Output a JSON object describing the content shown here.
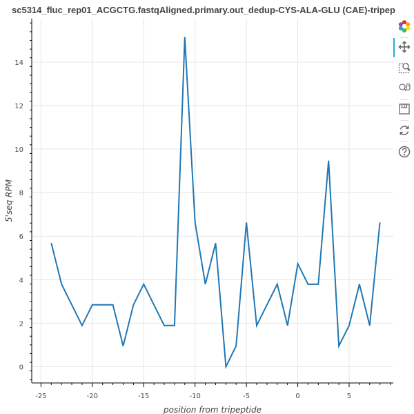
{
  "chart_data": {
    "type": "line",
    "title": "sc5314_fluc_rep01_ACGCTG.fastqAligned.primary.out_dedup-CYS-ALA-GLU (CAE)-tripep",
    "xlabel": "position from tripeptide",
    "ylabel": "5'seq RPM",
    "xlim": [
      -25.9,
      9.3
    ],
    "ylim": [
      -0.75,
      16.0
    ],
    "x_ticks": [
      -25,
      -20,
      -15,
      -10,
      -5,
      0,
      5
    ],
    "y_ticks": [
      0,
      2,
      4,
      6,
      8,
      10,
      12,
      14
    ],
    "grid": true,
    "line_color": "#1f77b4",
    "series": [
      {
        "x": [
          -24,
          -23,
          -22,
          -21,
          -20,
          -19,
          -18,
          -17,
          -16,
          -15,
          -14,
          -13,
          -12,
          -11,
          -10,
          -9,
          -8,
          -7,
          -6,
          -5,
          -4,
          -3,
          -2,
          -1,
          0,
          1,
          2,
          3,
          4,
          5,
          6,
          7,
          8
        ],
        "y": [
          5.68,
          3.79,
          2.84,
          1.89,
          2.84,
          2.84,
          2.84,
          0.95,
          2.84,
          3.79,
          2.84,
          1.89,
          1.89,
          15.15,
          6.63,
          3.79,
          5.68,
          0.0,
          0.95,
          6.63,
          1.89,
          2.84,
          3.79,
          1.89,
          4.73,
          3.79,
          3.79,
          9.47,
          0.95,
          1.89,
          3.79,
          1.89,
          6.63
        ]
      }
    ]
  },
  "toolbar": {
    "tools": [
      {
        "name": "bokeh-logo-icon"
      },
      {
        "name": "pan-icon"
      },
      {
        "name": "box-zoom-icon"
      },
      {
        "name": "wheel-zoom-icon"
      },
      {
        "name": "save-icon"
      },
      {
        "name": "reset-icon"
      },
      {
        "name": "help-icon"
      }
    ],
    "active_color": "#26aae1"
  }
}
